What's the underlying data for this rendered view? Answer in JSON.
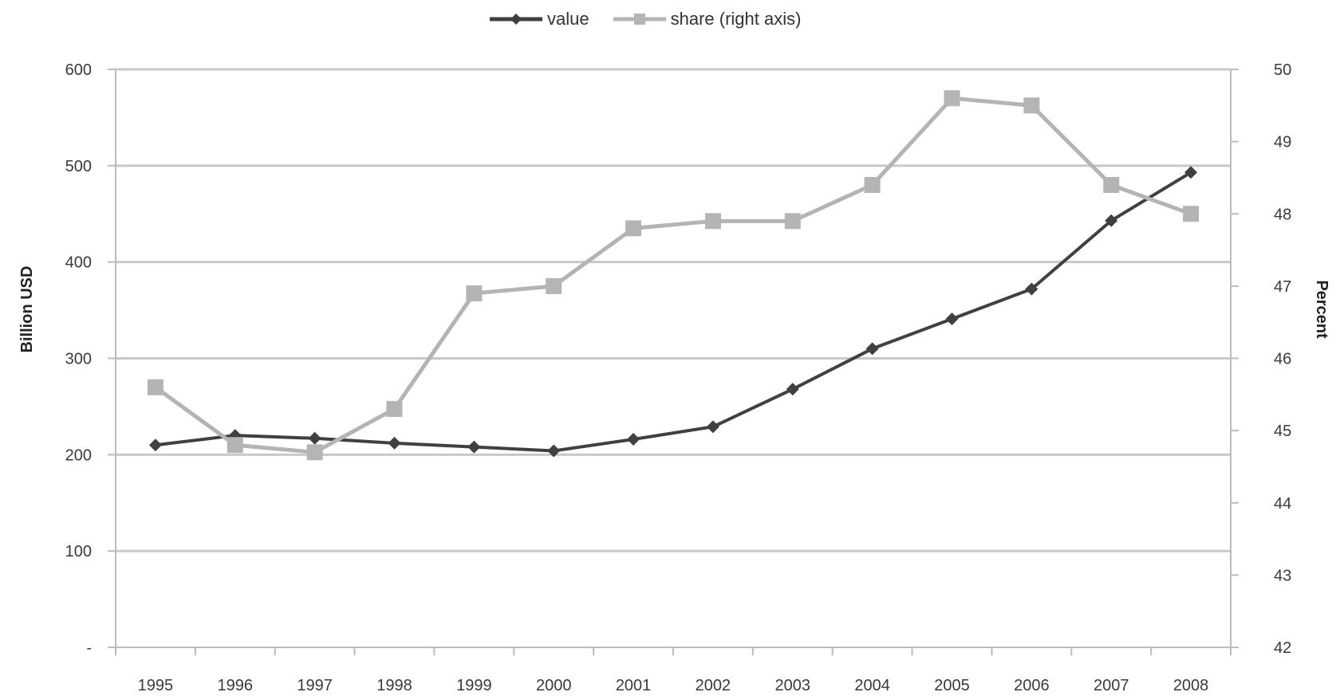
{
  "chart_data": {
    "type": "line",
    "categories": [
      "1995",
      "1996",
      "1997",
      "1998",
      "1999",
      "2000",
      "2001",
      "2002",
      "2003",
      "2004",
      "2005",
      "2006",
      "2007",
      "2008"
    ],
    "series": [
      {
        "name": "value",
        "axis": "left",
        "color": "#404040",
        "marker": "diamond",
        "values": [
          210,
          220,
          217,
          212,
          208,
          204,
          216,
          229,
          268,
          310,
          341,
          372,
          443,
          493
        ]
      },
      {
        "name": "share (right axis)",
        "axis": "right",
        "color": "#b4b4b4",
        "marker": "square",
        "values": [
          45.6,
          44.8,
          44.7,
          45.3,
          46.9,
          47.0,
          47.8,
          47.9,
          47.9,
          48.4,
          49.6,
          49.5,
          48.4,
          48.0
        ]
      }
    ],
    "yaxis_left": {
      "label": "Billion USD",
      "ylim": [
        0,
        600
      ],
      "ticks": [
        {
          "value": 0,
          "label": "-"
        },
        {
          "value": 100,
          "label": "100"
        },
        {
          "value": 200,
          "label": "200"
        },
        {
          "value": 300,
          "label": "300"
        },
        {
          "value": 400,
          "label": "400"
        },
        {
          "value": 500,
          "label": "500"
        },
        {
          "value": 600,
          "label": "600"
        }
      ]
    },
    "yaxis_right": {
      "label": "Percent",
      "ylim": [
        42,
        50
      ],
      "ticks": [
        "42",
        "43",
        "44",
        "45",
        "46",
        "47",
        "48",
        "49",
        "50"
      ]
    },
    "grid": true,
    "legend_position": "top-center"
  }
}
